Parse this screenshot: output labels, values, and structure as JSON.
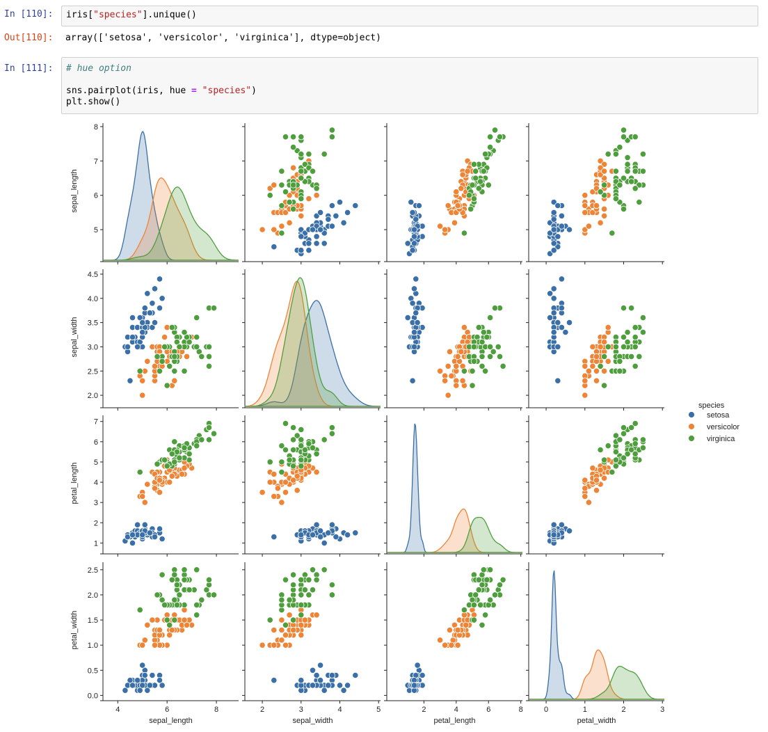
{
  "cells": {
    "c110": {
      "in_prompt": "In [110]:",
      "code_a": "iris[",
      "code_str": "\"species\"",
      "code_b": "].unique()",
      "out_prompt": "Out[110]:",
      "output": "array(['setosa', 'versicolor', 'virginica'], dtype=object)"
    },
    "c111": {
      "in_prompt": "In [111]:",
      "comment": "# hue option",
      "l2_a": "sns.pairplot(iris, hue ",
      "l2_op": "=",
      "l2_sp": " ",
      "l2_str": "\"species\"",
      "l2_b": ")",
      "line3": "plt.show()"
    }
  },
  "colors": {
    "setosa": "#3a6fa8",
    "versicolor": "#ee8436",
    "virginica": "#4f9e3d"
  },
  "chart_data": {
    "type": "scatter",
    "title": "sns.pairplot(iris, hue = \"species\")",
    "variables": [
      "sepal_length",
      "sepal_width",
      "petal_length",
      "petal_width"
    ],
    "legend": {
      "title": "species",
      "entries": [
        "setosa",
        "versicolor",
        "virginica"
      ],
      "placement": "right"
    },
    "ranges": {
      "sepal_length": [
        3.4,
        8.9
      ],
      "sepal_width": [
        1.55,
        5.05
      ],
      "petal_length": [
        -0.3,
        8.1
      ],
      "petal_width": [
        -0.45,
        3.05
      ]
    },
    "row_ranges": {
      "sepal_length": [
        4.15,
        8.1
      ],
      "sepal_width": [
        1.8,
        4.6
      ],
      "petal_length": [
        0.6,
        7.3
      ],
      "petal_width": [
        -0.05,
        2.65
      ]
    },
    "ticks": {
      "sepal_length": [
        4,
        6,
        8
      ],
      "sepal_width": [
        2,
        3,
        4,
        5
      ],
      "petal_length": [
        2,
        4,
        6,
        8
      ],
      "petal_width": [
        0,
        1,
        2,
        3
      ]
    },
    "row_ticks": {
      "sepal_length": [
        "5",
        "6",
        "7",
        "8"
      ],
      "sepal_width": [
        "2.0",
        "2.5",
        "3.0",
        "3.5",
        "4.0",
        "4.5"
      ],
      "petal_length": [
        "1",
        "2",
        "3",
        "4",
        "5",
        "6",
        "7"
      ],
      "petal_width": [
        "0.0",
        "0.5",
        "1.0",
        "1.5",
        "2.0",
        "2.5"
      ]
    },
    "species": {
      "setosa": [
        [
          5.1,
          3.5,
          1.4,
          0.2
        ],
        [
          4.9,
          3.0,
          1.4,
          0.2
        ],
        [
          4.7,
          3.2,
          1.3,
          0.2
        ],
        [
          4.6,
          3.1,
          1.5,
          0.2
        ],
        [
          5.0,
          3.6,
          1.4,
          0.2
        ],
        [
          5.4,
          3.9,
          1.7,
          0.4
        ],
        [
          4.6,
          3.4,
          1.4,
          0.3
        ],
        [
          5.0,
          3.4,
          1.5,
          0.2
        ],
        [
          4.4,
          2.9,
          1.4,
          0.2
        ],
        [
          4.9,
          3.1,
          1.5,
          0.1
        ],
        [
          5.4,
          3.7,
          1.5,
          0.2
        ],
        [
          4.8,
          3.4,
          1.6,
          0.2
        ],
        [
          4.8,
          3.0,
          1.4,
          0.1
        ],
        [
          4.3,
          3.0,
          1.1,
          0.1
        ],
        [
          5.8,
          4.0,
          1.2,
          0.2
        ],
        [
          5.7,
          4.4,
          1.5,
          0.4
        ],
        [
          5.4,
          3.9,
          1.3,
          0.4
        ],
        [
          5.1,
          3.5,
          1.4,
          0.3
        ],
        [
          5.7,
          3.8,
          1.7,
          0.3
        ],
        [
          5.1,
          3.8,
          1.5,
          0.3
        ],
        [
          5.4,
          3.4,
          1.7,
          0.2
        ],
        [
          5.1,
          3.7,
          1.5,
          0.4
        ],
        [
          4.6,
          3.6,
          1.0,
          0.2
        ],
        [
          5.1,
          3.3,
          1.7,
          0.5
        ],
        [
          4.8,
          3.4,
          1.9,
          0.2
        ],
        [
          5.0,
          3.0,
          1.6,
          0.2
        ],
        [
          5.0,
          3.4,
          1.6,
          0.4
        ],
        [
          5.2,
          3.5,
          1.5,
          0.2
        ],
        [
          5.2,
          3.4,
          1.4,
          0.2
        ],
        [
          4.7,
          3.2,
          1.6,
          0.2
        ],
        [
          4.8,
          3.1,
          1.6,
          0.2
        ],
        [
          5.4,
          3.4,
          1.5,
          0.4
        ],
        [
          5.2,
          4.1,
          1.5,
          0.1
        ],
        [
          5.5,
          4.2,
          1.4,
          0.2
        ],
        [
          4.9,
          3.1,
          1.5,
          0.2
        ],
        [
          5.0,
          3.2,
          1.2,
          0.2
        ],
        [
          5.5,
          3.5,
          1.3,
          0.2
        ],
        [
          4.9,
          3.6,
          1.4,
          0.1
        ],
        [
          4.4,
          3.0,
          1.3,
          0.2
        ],
        [
          5.1,
          3.4,
          1.5,
          0.2
        ],
        [
          5.0,
          3.5,
          1.3,
          0.3
        ],
        [
          4.5,
          2.3,
          1.3,
          0.3
        ],
        [
          4.4,
          3.2,
          1.3,
          0.2
        ],
        [
          5.0,
          3.5,
          1.6,
          0.6
        ],
        [
          5.1,
          3.8,
          1.9,
          0.4
        ],
        [
          4.8,
          3.0,
          1.4,
          0.3
        ],
        [
          5.1,
          3.8,
          1.6,
          0.2
        ],
        [
          4.6,
          3.2,
          1.4,
          0.2
        ],
        [
          5.3,
          3.7,
          1.5,
          0.2
        ],
        [
          5.0,
          3.3,
          1.4,
          0.2
        ]
      ],
      "versicolor": [
        [
          7.0,
          3.2,
          4.7,
          1.4
        ],
        [
          6.4,
          3.2,
          4.5,
          1.5
        ],
        [
          6.9,
          3.1,
          4.9,
          1.5
        ],
        [
          5.5,
          2.3,
          4.0,
          1.3
        ],
        [
          6.5,
          2.8,
          4.6,
          1.5
        ],
        [
          5.7,
          2.8,
          4.5,
          1.3
        ],
        [
          6.3,
          3.3,
          4.7,
          1.6
        ],
        [
          4.9,
          2.4,
          3.3,
          1.0
        ],
        [
          6.6,
          2.9,
          4.6,
          1.3
        ],
        [
          5.2,
          2.7,
          3.9,
          1.4
        ],
        [
          5.0,
          2.0,
          3.5,
          1.0
        ],
        [
          5.9,
          3.0,
          4.2,
          1.5
        ],
        [
          6.0,
          2.2,
          4.0,
          1.0
        ],
        [
          6.1,
          2.9,
          4.7,
          1.4
        ],
        [
          5.6,
          2.9,
          3.6,
          1.3
        ],
        [
          6.7,
          3.1,
          4.4,
          1.4
        ],
        [
          5.6,
          3.0,
          4.5,
          1.5
        ],
        [
          5.8,
          2.7,
          4.1,
          1.0
        ],
        [
          6.2,
          2.2,
          4.5,
          1.5
        ],
        [
          5.6,
          2.5,
          3.9,
          1.1
        ],
        [
          5.9,
          3.2,
          4.8,
          1.8
        ],
        [
          6.1,
          2.8,
          4.0,
          1.3
        ],
        [
          6.3,
          2.5,
          4.9,
          1.5
        ],
        [
          6.1,
          2.8,
          4.7,
          1.2
        ],
        [
          6.4,
          2.9,
          4.3,
          1.3
        ],
        [
          6.6,
          3.0,
          4.4,
          1.4
        ],
        [
          6.8,
          2.8,
          4.8,
          1.4
        ],
        [
          6.7,
          3.0,
          5.0,
          1.7
        ],
        [
          6.0,
          2.9,
          4.5,
          1.5
        ],
        [
          5.7,
          2.6,
          3.5,
          1.0
        ],
        [
          5.5,
          2.4,
          3.8,
          1.1
        ],
        [
          5.5,
          2.4,
          3.7,
          1.0
        ],
        [
          5.8,
          2.7,
          3.9,
          1.2
        ],
        [
          6.0,
          2.7,
          5.1,
          1.6
        ],
        [
          5.4,
          3.0,
          4.5,
          1.5
        ],
        [
          6.0,
          3.4,
          4.5,
          1.6
        ],
        [
          6.7,
          3.1,
          4.7,
          1.5
        ],
        [
          6.3,
          2.3,
          4.4,
          1.3
        ],
        [
          5.6,
          3.0,
          4.1,
          1.3
        ],
        [
          5.5,
          2.5,
          4.0,
          1.3
        ],
        [
          5.5,
          2.6,
          4.4,
          1.2
        ],
        [
          6.1,
          3.0,
          4.6,
          1.4
        ],
        [
          5.8,
          2.6,
          4.0,
          1.2
        ],
        [
          5.0,
          2.3,
          3.3,
          1.0
        ],
        [
          5.6,
          2.7,
          4.2,
          1.3
        ],
        [
          5.7,
          3.0,
          4.2,
          1.2
        ],
        [
          5.7,
          2.9,
          4.2,
          1.3
        ],
        [
          6.2,
          2.9,
          4.3,
          1.3
        ],
        [
          5.1,
          2.5,
          3.0,
          1.1
        ],
        [
          5.7,
          2.8,
          4.1,
          1.3
        ]
      ],
      "virginica": [
        [
          6.3,
          3.3,
          6.0,
          2.5
        ],
        [
          5.8,
          2.7,
          5.1,
          1.9
        ],
        [
          7.1,
          3.0,
          5.9,
          2.1
        ],
        [
          6.3,
          2.9,
          5.6,
          1.8
        ],
        [
          6.5,
          3.0,
          5.8,
          2.2
        ],
        [
          7.6,
          3.0,
          6.6,
          2.1
        ],
        [
          4.9,
          2.5,
          4.5,
          1.7
        ],
        [
          7.3,
          2.9,
          6.3,
          1.8
        ],
        [
          6.7,
          2.5,
          5.8,
          1.8
        ],
        [
          7.2,
          3.6,
          6.1,
          2.5
        ],
        [
          6.5,
          3.2,
          5.1,
          2.0
        ],
        [
          6.4,
          2.7,
          5.3,
          1.9
        ],
        [
          6.8,
          3.0,
          5.5,
          2.1
        ],
        [
          5.7,
          2.5,
          5.0,
          2.0
        ],
        [
          5.8,
          2.8,
          5.1,
          2.4
        ],
        [
          6.4,
          3.2,
          5.3,
          2.3
        ],
        [
          6.5,
          3.0,
          5.5,
          1.8
        ],
        [
          7.7,
          3.8,
          6.7,
          2.2
        ],
        [
          7.7,
          2.6,
          6.9,
          2.3
        ],
        [
          6.0,
          2.2,
          5.0,
          1.5
        ],
        [
          6.9,
          3.2,
          5.7,
          2.3
        ],
        [
          5.6,
          2.8,
          4.9,
          2.0
        ],
        [
          7.7,
          2.8,
          6.7,
          2.0
        ],
        [
          6.3,
          2.7,
          4.9,
          1.8
        ],
        [
          6.7,
          3.3,
          5.7,
          2.1
        ],
        [
          7.2,
          3.2,
          6.0,
          1.8
        ],
        [
          6.2,
          2.8,
          4.8,
          1.8
        ],
        [
          6.1,
          3.0,
          4.9,
          1.8
        ],
        [
          6.4,
          2.8,
          5.6,
          2.1
        ],
        [
          7.2,
          3.0,
          5.8,
          1.6
        ],
        [
          7.4,
          2.8,
          6.1,
          1.9
        ],
        [
          7.9,
          3.8,
          6.4,
          2.0
        ],
        [
          6.4,
          2.8,
          5.6,
          2.2
        ],
        [
          6.3,
          2.8,
          5.1,
          1.5
        ],
        [
          6.1,
          2.6,
          5.6,
          1.4
        ],
        [
          7.7,
          3.0,
          6.1,
          2.3
        ],
        [
          6.3,
          3.4,
          5.6,
          2.4
        ],
        [
          6.4,
          3.1,
          5.5,
          1.8
        ],
        [
          6.0,
          3.0,
          4.8,
          1.8
        ],
        [
          6.9,
          3.1,
          5.4,
          2.1
        ],
        [
          6.7,
          3.1,
          5.6,
          2.4
        ],
        [
          6.9,
          3.1,
          5.1,
          2.3
        ],
        [
          5.8,
          2.7,
          5.1,
          1.9
        ],
        [
          6.8,
          3.2,
          5.9,
          2.3
        ],
        [
          6.7,
          3.3,
          5.7,
          2.5
        ],
        [
          6.7,
          3.0,
          5.2,
          2.3
        ],
        [
          6.3,
          2.5,
          5.0,
          1.9
        ],
        [
          6.5,
          3.0,
          5.2,
          2.0
        ],
        [
          6.2,
          3.4,
          5.4,
          2.3
        ],
        [
          5.9,
          3.0,
          5.1,
          1.8
        ]
      ]
    }
  }
}
